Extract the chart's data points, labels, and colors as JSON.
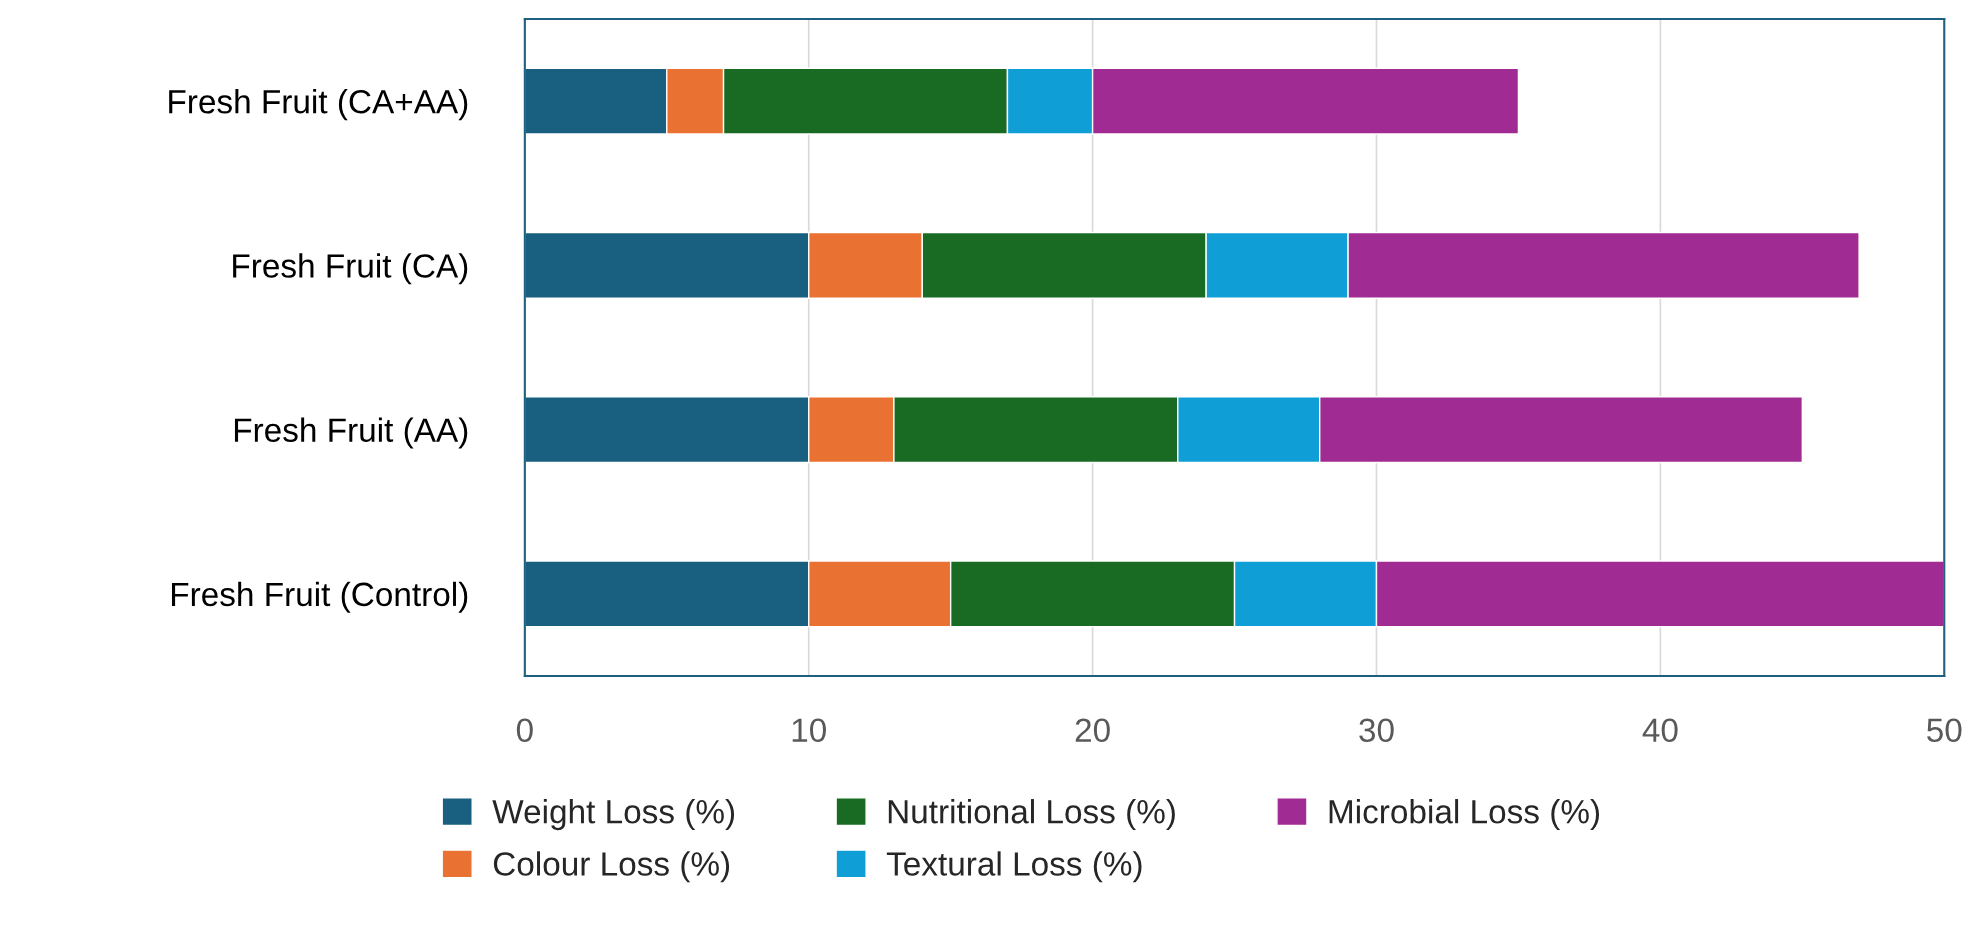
{
  "chart_data": {
    "type": "bar",
    "orientation": "horizontal",
    "stacked": true,
    "categories": [
      "Fresh Fruit (CA+AA)",
      "Fresh Fruit (CA)",
      "Fresh Fruit (AA)",
      "Fresh Fruit (Control)"
    ],
    "series": [
      {
        "name": "Weight Loss (%)",
        "color": "#185f80",
        "values": [
          5,
          10,
          10,
          10
        ]
      },
      {
        "name": "Colour Loss (%)",
        "color": "#e97132",
        "values": [
          2,
          4,
          3,
          5
        ]
      },
      {
        "name": "Nutritional Loss (%)",
        "color": "#196b24",
        "values": [
          10,
          10,
          10,
          10
        ]
      },
      {
        "name": "Textural Loss (%)",
        "color": "#0f9ed5",
        "values": [
          3,
          5,
          5,
          5
        ]
      },
      {
        "name": "Microbial Loss (%)",
        "color": "#a02b93",
        "values": [
          15,
          18,
          17,
          20
        ]
      }
    ],
    "xlim": [
      0,
      50
    ],
    "xticks": [
      0,
      10,
      20,
      30,
      40,
      50
    ],
    "grid": "x",
    "legend": "bottom"
  }
}
